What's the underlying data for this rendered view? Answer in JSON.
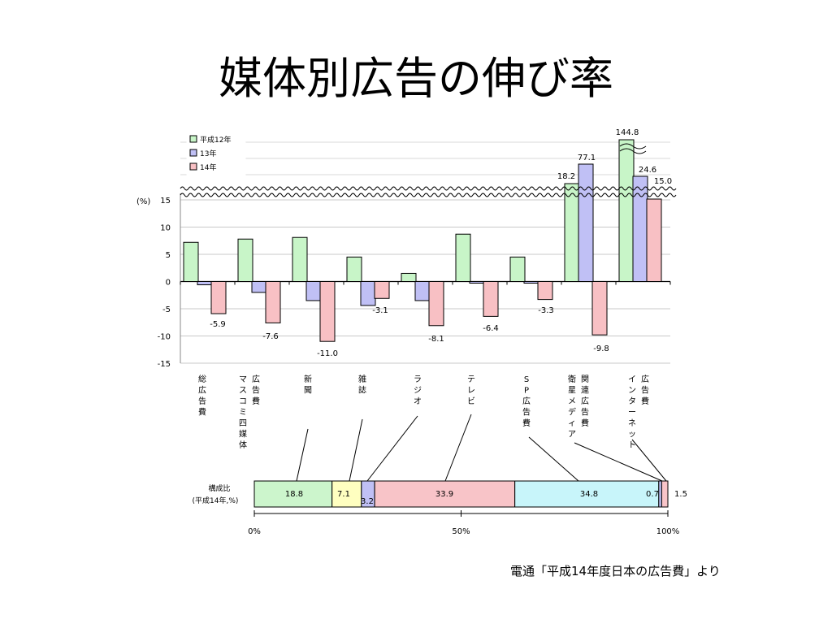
{
  "slide": {
    "title": "媒体別広告の伸び率",
    "source": "電通「平成14年度日本の広告費」より"
  },
  "chart_data": [
    {
      "type": "bar",
      "ylabel": "(%)",
      "ylim": [
        -15,
        15
      ],
      "yticks": [
        "15",
        "10",
        "5",
        "0",
        "-5",
        "-10",
        "-15"
      ],
      "axis_break": "above 15",
      "grid": true,
      "legend_position": "top-left",
      "categories": [
        "総広告費",
        "マスコミ四媒体広告費",
        "新聞",
        "雑誌",
        "ラジオ",
        "テレビ",
        "SP広告費",
        "衛星メディア関連広告費",
        "インターネット広告費"
      ],
      "category_label_columns": [
        [
          "総広告費"
        ],
        [
          "マスコミ四媒体",
          "広告費"
        ],
        [
          "新聞"
        ],
        [
          "雑誌"
        ],
        [
          "ラジオ"
        ],
        [
          "テレビ"
        ],
        [
          "SP広告費"
        ],
        [
          "衛星メディア",
          "関連広告費"
        ],
        [
          "インターネット",
          "広告費"
        ]
      ],
      "series": [
        {
          "name": "平成12年",
          "color": "#c8f5c8",
          "values": [
            7.2,
            7.8,
            8.1,
            4.5,
            1.5,
            8.7,
            4.5,
            18.2,
            144.8
          ]
        },
        {
          "name": "13年",
          "color": "#c0c0f5",
          "values": [
            -0.6,
            -2.0,
            -3.5,
            -4.4,
            -3.5,
            -0.3,
            -0.3,
            77.1,
            24.6
          ]
        },
        {
          "name": "14年",
          "color": "#f8c0c4",
          "values": [
            -5.9,
            -7.6,
            -11.0,
            -3.1,
            -8.1,
            -6.4,
            -3.3,
            -9.8,
            15.0
          ]
        }
      ],
      "data_labels": [
        {
          "category": "総広告費",
          "series": "14年",
          "text": "-5.9"
        },
        {
          "category": "マスコミ四媒体広告費",
          "series": "14年",
          "text": "-7.6"
        },
        {
          "category": "新聞",
          "series": "14年",
          "text": "-11.0"
        },
        {
          "category": "雑誌",
          "series": "14年",
          "text": "-3.1"
        },
        {
          "category": "ラジオ",
          "series": "14年",
          "text": "-8.1"
        },
        {
          "category": "テレビ",
          "series": "14年",
          "text": "-6.4"
        },
        {
          "category": "SP広告費",
          "series": "14年",
          "text": "-3.3"
        },
        {
          "category": "衛星メディア関連広告費",
          "series": "平成12年",
          "text": "18.2"
        },
        {
          "category": "衛星メディア関連広告費",
          "series": "13年",
          "text": "77.1"
        },
        {
          "category": "衛星メディア関連広告費",
          "series": "14年",
          "text": "-9.8"
        },
        {
          "category": "インターネット広告費",
          "series": "平成12年",
          "text": "144.8"
        },
        {
          "category": "インターネット広告費",
          "series": "13年",
          "text": "24.6"
        },
        {
          "category": "インターネット広告費",
          "series": "14年",
          "text": "15.0"
        }
      ]
    },
    {
      "type": "bar",
      "orientation": "horizontal-stacked-100",
      "label_lines": [
        "構成比",
        "(平成14年,%)"
      ],
      "xticks": [
        "0%",
        "50%",
        "100%"
      ],
      "segments": [
        {
          "category": "新聞",
          "value": 18.8,
          "label": "18.8",
          "color": "#ccf5cc"
        },
        {
          "category": "雑誌",
          "value": 7.1,
          "label": "7.1",
          "color": "#ffffc0"
        },
        {
          "category": "ラジオ",
          "value": 3.2,
          "label": "3.2",
          "color": "#c0c0f5"
        },
        {
          "category": "テレビ",
          "value": 33.9,
          "label": "33.9",
          "color": "#f8c4c8"
        },
        {
          "category": "SP広告費",
          "value": 34.8,
          "label": "34.8",
          "color": "#c8f5fa"
        },
        {
          "category": "衛星メディア関連広告費",
          "value": 0.7,
          "label": "0.7",
          "color": "#c0c0f5"
        },
        {
          "category": "インターネット広告費",
          "value": 1.5,
          "label": "1.5",
          "color": "#f8c4c8"
        }
      ]
    }
  ]
}
